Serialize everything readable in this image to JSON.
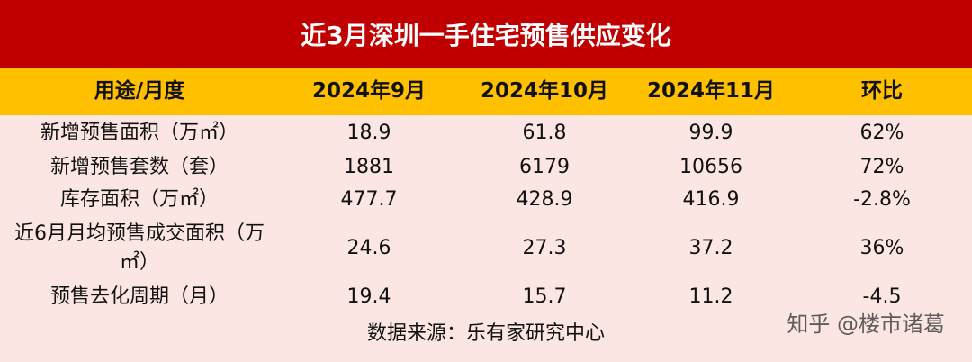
{
  "header": {
    "title": "近3月深圳一手住宅预售供应变化"
  },
  "table": {
    "columns": [
      "用途/月度",
      "2024年9月",
      "2024年10月",
      "2024年11月",
      "环比"
    ],
    "rows": [
      [
        "新增预售面积（万㎡）",
        "18.9",
        "61.8",
        "99.9",
        "62%"
      ],
      [
        "新增预售套数（套）",
        "1881",
        "6179",
        "10656",
        "72%"
      ],
      [
        "库存面积（万㎡）",
        "477.7",
        "428.9",
        "416.9",
        "-2.8%"
      ],
      [
        "近6月月均预售成交面积（万㎡）",
        "24.6",
        "27.3",
        "37.2",
        "36%"
      ],
      [
        "预售去化周期（月）",
        "19.4",
        "15.7",
        "11.2",
        "-4.5"
      ]
    ],
    "source": "数据来源：乐有家研究中心"
  },
  "watermark": "知乎 @楼市诸葛"
}
